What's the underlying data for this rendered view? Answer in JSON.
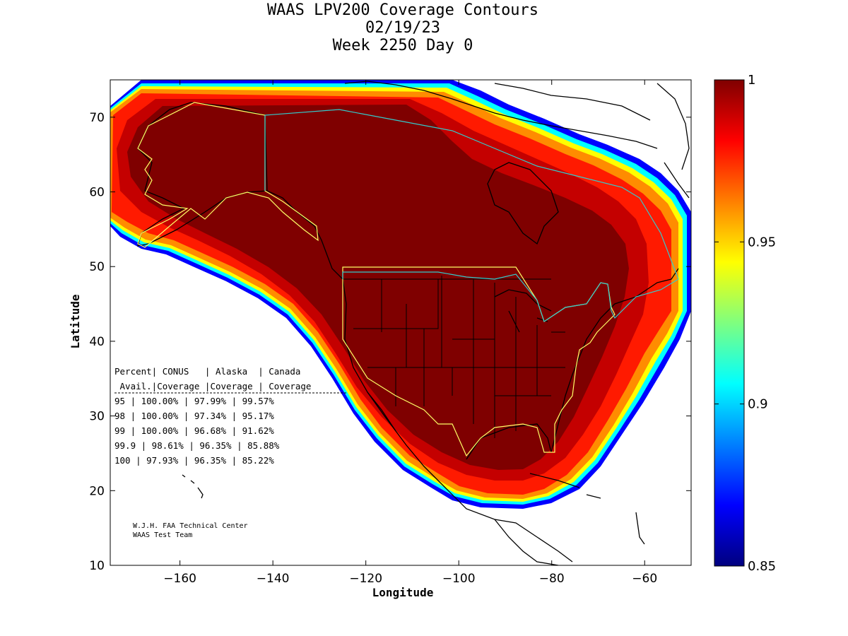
{
  "title": {
    "line1": "WAAS LPV200 Coverage Contours",
    "line2": "02/19/23",
    "line3": "Week 2250 Day 0"
  },
  "chart_data": {
    "type": "heatmap",
    "xlabel": "Longitude",
    "ylabel": "Latitude",
    "xlim": [
      -175,
      -50
    ],
    "ylim": [
      10,
      75
    ],
    "xticks": [
      -160,
      -140,
      -120,
      -100,
      -80,
      -60
    ],
    "yticks": [
      10,
      20,
      30,
      40,
      50,
      60,
      70
    ],
    "colorbar": {
      "min": 0.85,
      "max": 1,
      "ticks": [
        {
          "value": 1,
          "label": "1"
        },
        {
          "value": 0.95,
          "label": "0.95"
        },
        {
          "value": 0.9,
          "label": "0.9"
        },
        {
          "value": 0.85,
          "label": "0.85"
        }
      ],
      "colors": [
        "#00007f",
        "#0000ff",
        "#007fff",
        "#00ffff",
        "#7fff7f",
        "#ffff00",
        "#ff7f00",
        "#ff0000",
        "#7f0000"
      ]
    },
    "coverage_table": {
      "header_row1": [
        "Percent",
        "CONUS",
        "Alaska",
        "Canada"
      ],
      "header_row2": [
        "Avail.",
        "Coverage",
        "Coverage",
        "Coverage"
      ],
      "rows": [
        {
          "avail": "95",
          "conus": "100.00%",
          "alaska": "97.99%",
          "canada": "99.57%"
        },
        {
          "avail": "98",
          "conus": "100.00%",
          "alaska": "97.34%",
          "canada": "95.17%"
        },
        {
          "avail": "99",
          "conus": "100.00%",
          "alaska": "96.68%",
          "canada": "91.62%"
        },
        {
          "avail": "99.9",
          "conus": "98.61%",
          "alaska": "96.35%",
          "canada": "85.88%"
        },
        {
          "avail": "100",
          "conus": "97.93%",
          "alaska": "96.35%",
          "canada": "85.22%"
        }
      ]
    },
    "credit": {
      "line1": "W.J.H. FAA Technical Center",
      "line2": "WAAS Test Team"
    },
    "contour_colors": {
      "core": "#7f0000",
      "level2": "#c40000",
      "level3": "#ff1a00",
      "level4": "#ff8c00",
      "level5": "#ffff00",
      "level6": "#00ffff",
      "level7": "#0000ff"
    },
    "boundary_colors": {
      "service_area": "#ffff66",
      "border": "#33cccc"
    }
  }
}
